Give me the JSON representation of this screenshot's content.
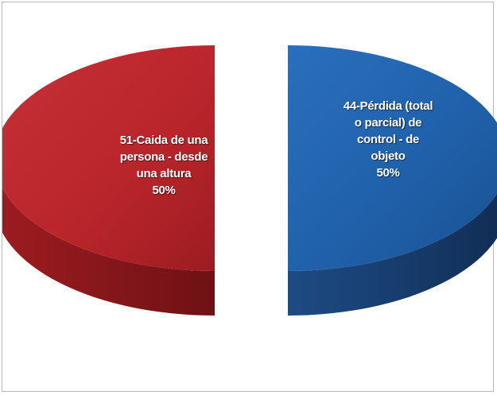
{
  "chart_data": {
    "type": "pie",
    "style": "3d-exploded",
    "slices": [
      {
        "name": "51-Caida de una persona - desde una altura",
        "label_lines": [
          "51-Caida de una",
          "persona - desde",
          "una altura"
        ],
        "value": 50,
        "percent_label": "50%",
        "color": "#c0272d",
        "side_color": "#7d1418"
      },
      {
        "name": "44-Pérdida (total o parcial) de control - de objeto",
        "label_lines": [
          "44-Pérdida (total",
          "o parcial) de",
          "control - de",
          "objeto"
        ],
        "value": 50,
        "percent_label": "50%",
        "color": "#1f5fa8",
        "side_color": "#173b6c"
      }
    ],
    "legend": "none"
  }
}
